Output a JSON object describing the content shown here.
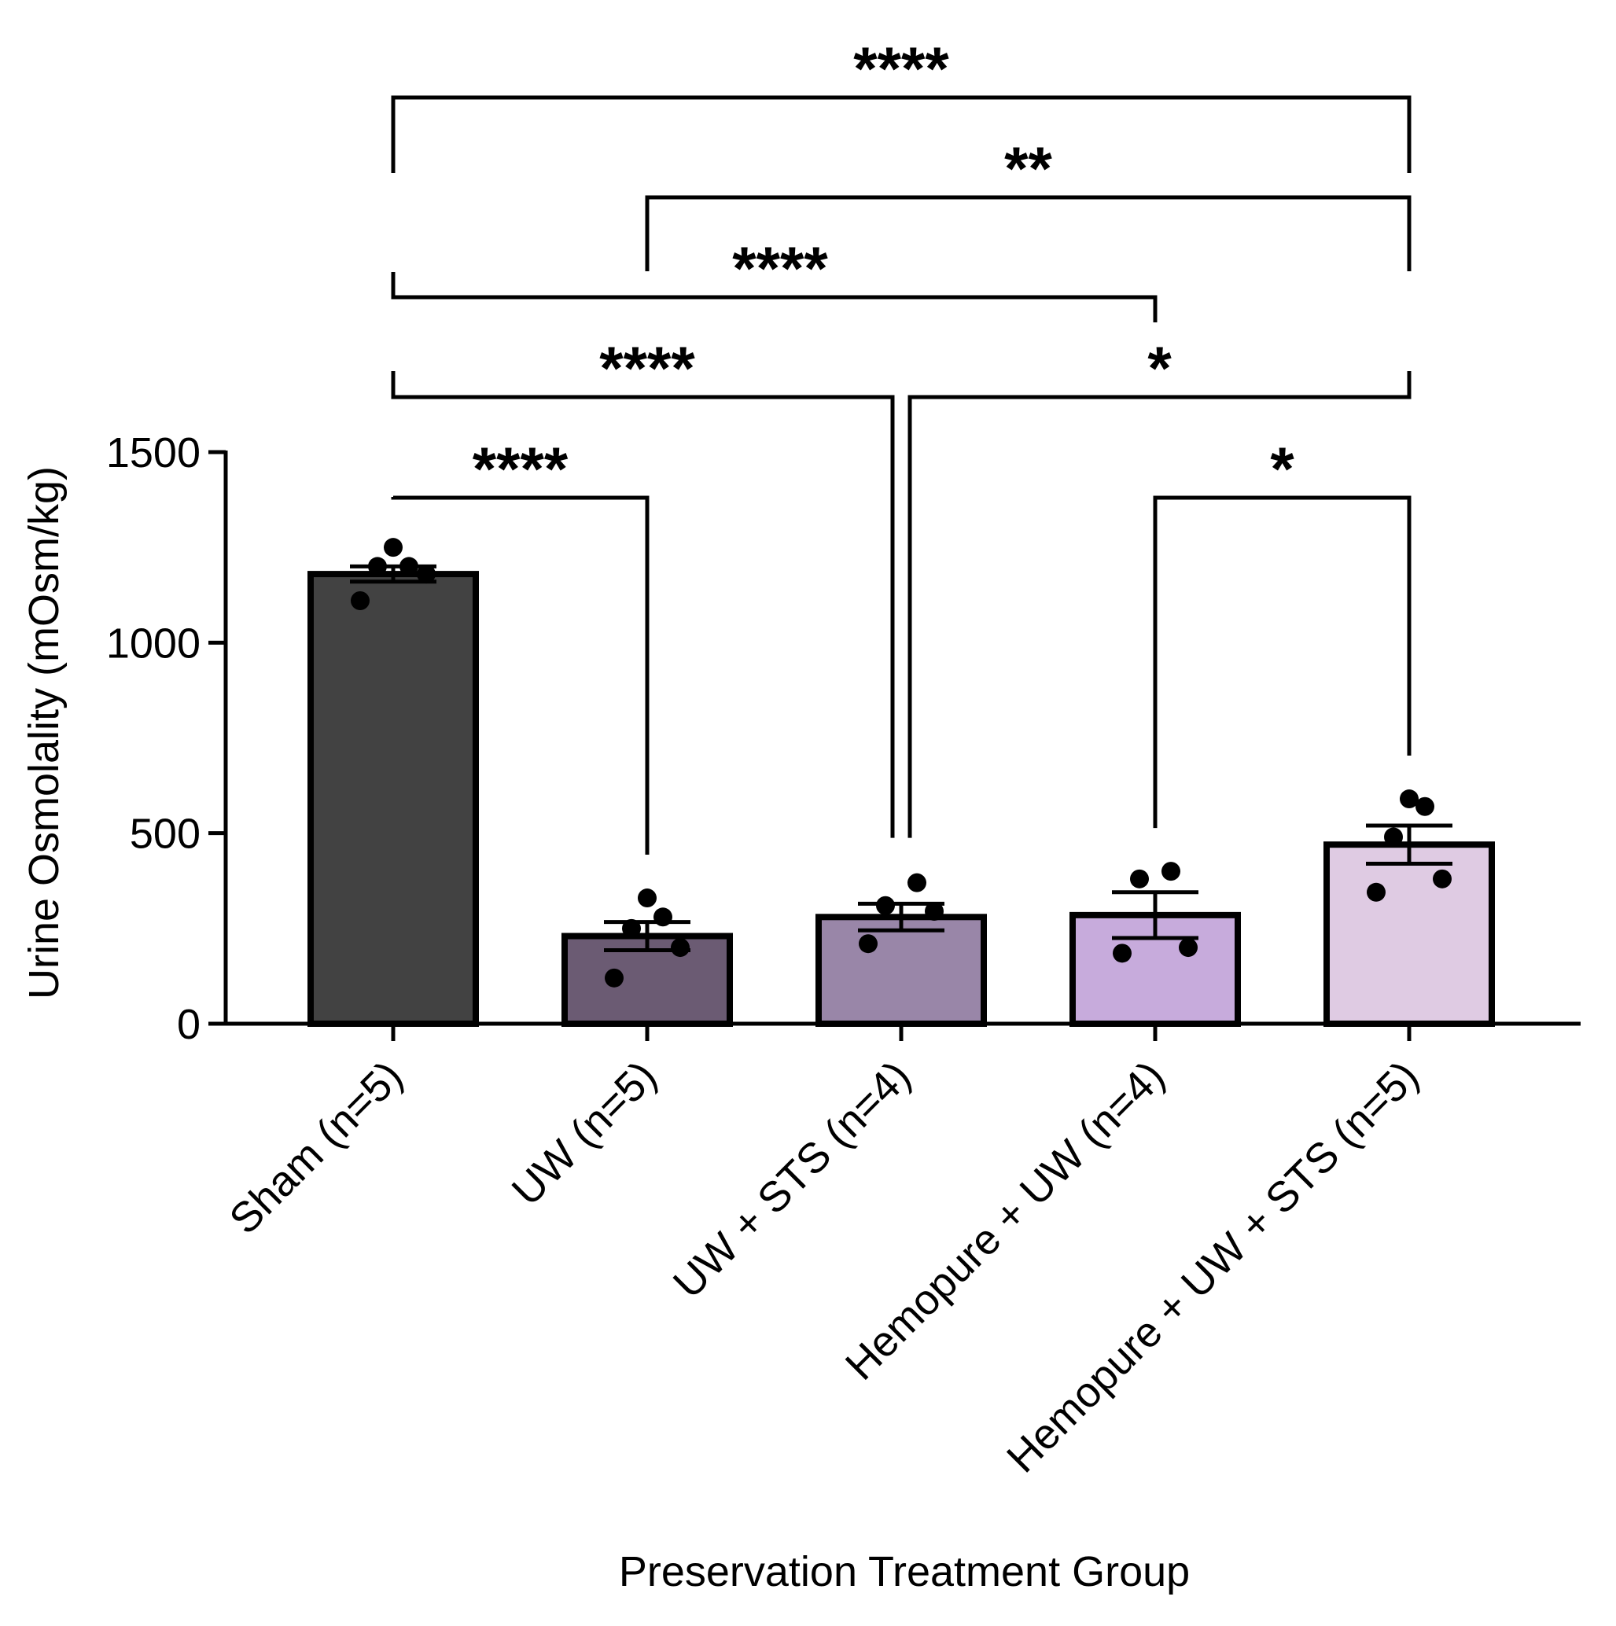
{
  "chart_data": {
    "type": "bar",
    "title": "",
    "xlabel": "Preservation Treatment Group",
    "ylabel": "Urine Osmolality (mOsm/kg)",
    "ylim": [
      0,
      1500
    ],
    "yticks": [
      0,
      500,
      1000,
      1500
    ],
    "grid": false,
    "categories": [
      "Sham (n=5)",
      "UW (n=5)",
      "UW + STS (n=4)",
      "Hemopure + UW (n=4)",
      "Hemopure + UW + STS (n=5)"
    ],
    "values": [
      1180,
      230,
      280,
      285,
      470
    ],
    "sem": [
      20,
      37,
      35,
      60,
      50
    ],
    "colors": [
      "#424242",
      "#6b5b73",
      "#9986a8",
      "#c7abdc",
      "#dfcbe3"
    ],
    "points": [
      [
        1110,
        1180,
        1200,
        1200,
        1250
      ],
      [
        120,
        200,
        250,
        280,
        330
      ],
      [
        210,
        295,
        310,
        370
      ],
      [
        185,
        200,
        380,
        400
      ],
      [
        345,
        380,
        490,
        570,
        590
      ]
    ],
    "comparisons": [
      {
        "from": 0,
        "to": 1,
        "label": "****"
      },
      {
        "from": 0,
        "to": 2,
        "label": "****"
      },
      {
        "from": 0,
        "to": 3,
        "label": "****"
      },
      {
        "from": 0,
        "to": 4,
        "label": "****"
      },
      {
        "from": 1,
        "to": 4,
        "label": "**"
      },
      {
        "from": 2,
        "to": 4,
        "label": "*"
      },
      {
        "from": 3,
        "to": 4,
        "label": "*"
      }
    ]
  }
}
